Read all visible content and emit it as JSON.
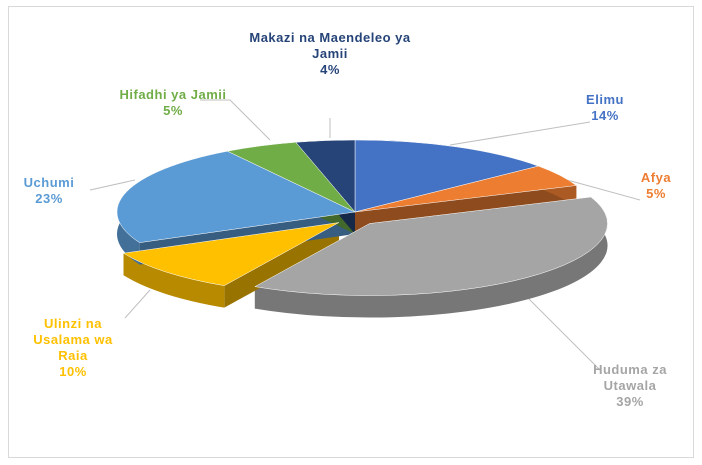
{
  "chart_data": {
    "type": "pie3d",
    "categories": [
      "Elimu",
      "Afya",
      "Huduma za Utawala",
      "Ulinzi na Usalama wa Raia",
      "Uchumi",
      "Hifadhi ya Jamii",
      "Makazi na Maendeleo ya Jamii"
    ],
    "values": [
      14,
      5,
      39,
      10,
      23,
      5,
      4
    ],
    "value_labels": [
      "14%",
      "5%",
      "39%",
      "10%",
      "23%",
      "5%",
      "4%"
    ],
    "colors": [
      "#4472c4",
      "#ed7d31",
      "#a5a5a5",
      "#ffc000",
      "#5b9bd5",
      "#70ad47",
      "#264478"
    ],
    "exploded": [
      false,
      false,
      true,
      true,
      false,
      false,
      false
    ]
  }
}
